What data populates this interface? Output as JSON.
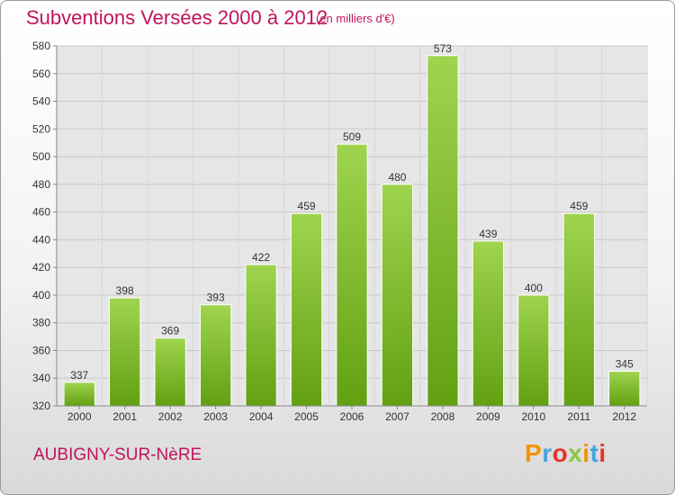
{
  "header": {
    "title": "Subventions Versées 2000 à 2012",
    "subtitle": "(en milliers d'€)"
  },
  "footer": {
    "commune": "AUBIGNY-SUR-NèRE",
    "logo_text": "Proxiti"
  },
  "colors": {
    "title": "#c0155a",
    "bar_top": "#9fd44f",
    "bar_bottom": "#62a012",
    "grid": "#c8c8c8",
    "axis_text": "#333333"
  },
  "chart_data": {
    "type": "bar",
    "title": "Subventions Versées 2000 à 2012",
    "subtitle": "(en milliers d'€)",
    "xlabel": "",
    "ylabel": "",
    "categories": [
      "2000",
      "2001",
      "2002",
      "2003",
      "2004",
      "2005",
      "2006",
      "2007",
      "2008",
      "2009",
      "2010",
      "2011",
      "2012"
    ],
    "values": [
      337,
      398,
      369,
      393,
      422,
      459,
      509,
      480,
      573,
      439,
      400,
      459,
      345
    ],
    "ylim": [
      320,
      580
    ],
    "yticks": [
      320,
      340,
      360,
      380,
      400,
      420,
      440,
      460,
      480,
      500,
      520,
      540,
      560,
      580
    ],
    "grid": true,
    "legend": "none",
    "data_labels": true
  }
}
